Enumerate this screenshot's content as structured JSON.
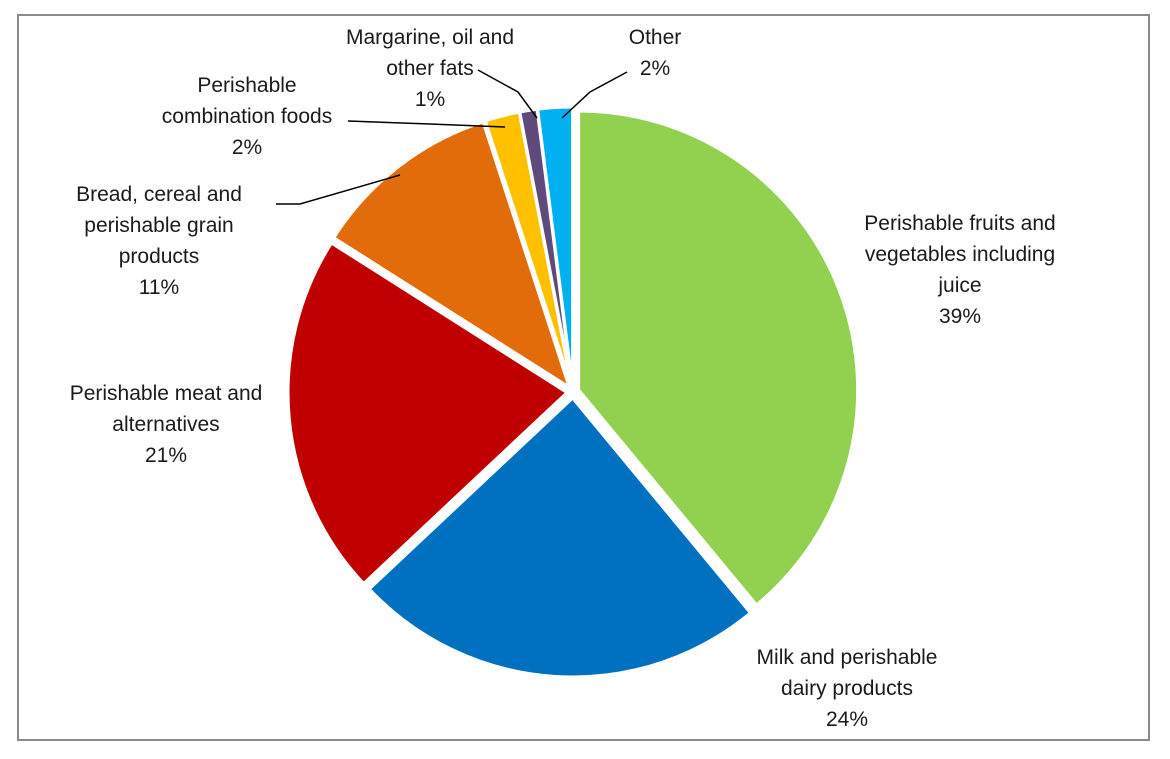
{
  "chart_data": {
    "type": "pie",
    "title": "",
    "slices": [
      {
        "name": [
          "Perishable fruits and",
          "vegetables including",
          "juice"
        ],
        "value": 39,
        "label": "39%",
        "color": "#92d050"
      },
      {
        "name": [
          "Milk and perishable",
          "dairy products"
        ],
        "value": 24,
        "label": "24%",
        "color": "#0070c0"
      },
      {
        "name": [
          "Perishable meat and",
          "alternatives"
        ],
        "value": 21,
        "label": "21%",
        "color": "#c00000"
      },
      {
        "name": [
          "Bread, cereal and",
          "perishable grain",
          "products"
        ],
        "value": 11,
        "label": "11%",
        "color": "#e36c0a"
      },
      {
        "name": [
          "Perishable",
          "combination foods"
        ],
        "value": 2,
        "label": "2%",
        "color": "#ffc000"
      },
      {
        "name": [
          "Margarine, oil and",
          "other fats"
        ],
        "value": 1,
        "label": "1%",
        "color": "#604a7b"
      },
      {
        "name": [
          "Other"
        ],
        "value": 2,
        "label": "2%",
        "color": "#00b0f0"
      }
    ]
  }
}
